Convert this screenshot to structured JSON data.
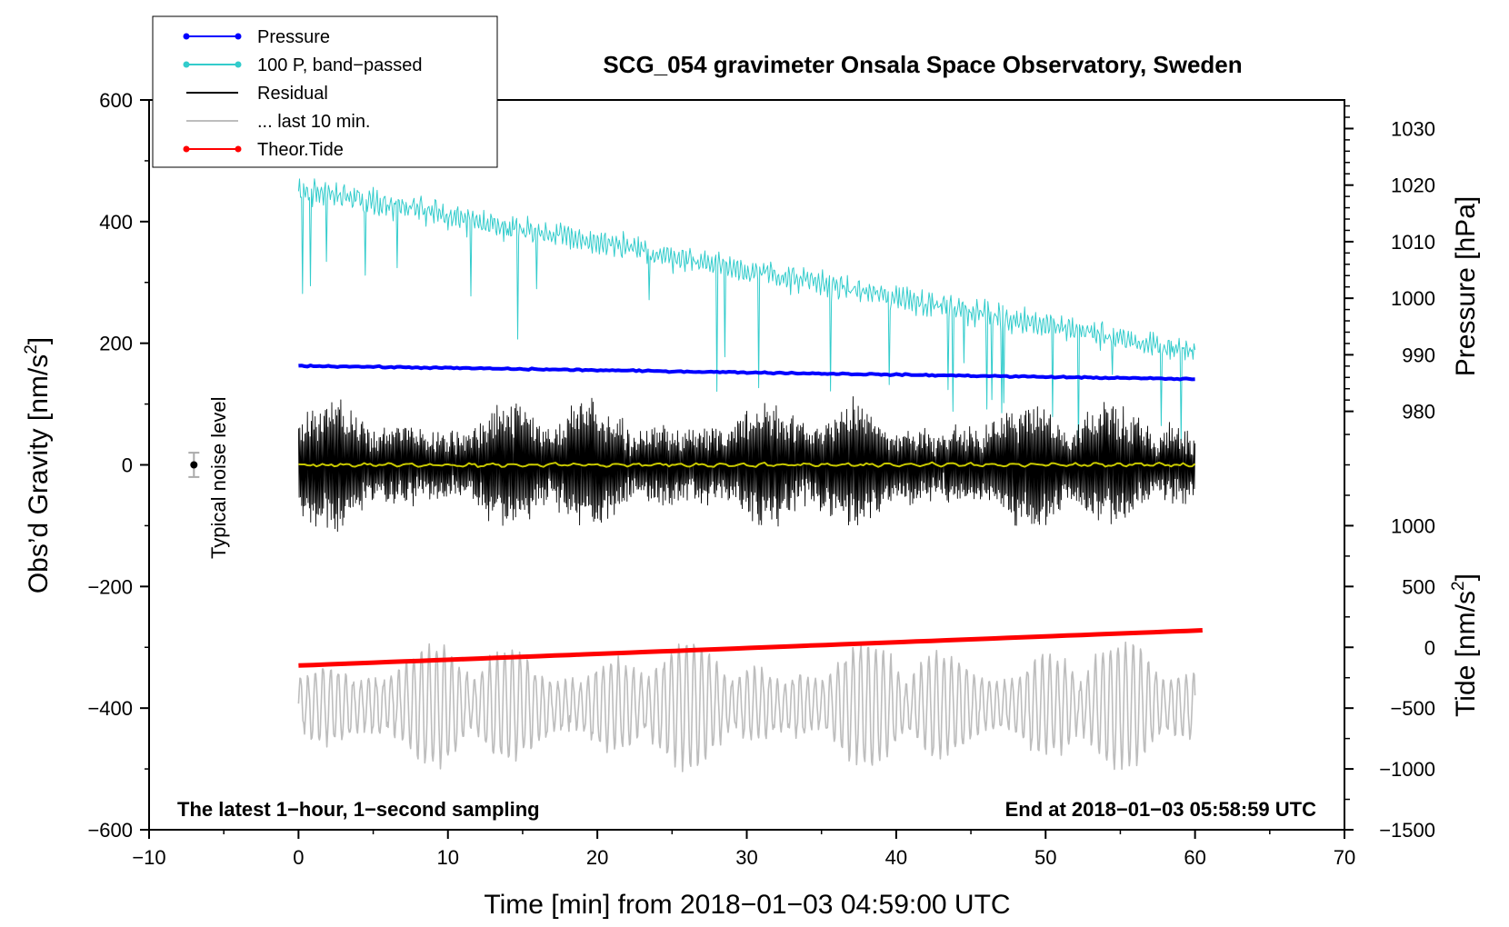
{
  "colors": {
    "pressure": "#0000ff",
    "band_passed": "#33cccc",
    "residual": "#000000",
    "last10": "#bdbdbd",
    "tide": "#ff0000",
    "zero_line": "#c8c800"
  },
  "legend": {
    "items": [
      {
        "label": "Pressure",
        "color": "#0000ff",
        "marker": true
      },
      {
        "label": "100 P, band−passed",
        "color": "#33cccc",
        "marker": true
      },
      {
        "label": "Residual",
        "color": "#000000",
        "marker": false
      },
      {
        "label": "... last 10 min.",
        "color": "#bdbdbd",
        "marker": false
      },
      {
        "label": "Theor.Tide",
        "color": "#ff0000",
        "marker": true
      }
    ]
  },
  "annotations": {
    "left_note": "The latest 1−hour, 1−second sampling",
    "right_note": "End at 2018−01−03 05:58:59 UTC",
    "noise_label": "Typical noise level"
  },
  "chart_data": {
    "type": "line",
    "title": "SCG_054 gravimeter Onsala Space Observatory, Sweden",
    "xlabel": "Time [min] from 2018−01−03 04:59:00 UTC",
    "ylabel": "Obs’d Gravity [nm/s",
    "ylabel_sup": "2",
    "ylabel_end": "]",
    "xlim": [
      -10,
      70
    ],
    "ylim": [
      -600,
      600
    ],
    "x_ticks": [
      -10,
      0,
      10,
      20,
      30,
      40,
      50,
      60,
      70
    ],
    "x_tick_labels": [
      "−10",
      "0",
      "10",
      "20",
      "30",
      "40",
      "50",
      "60",
      "70"
    ],
    "y_ticks": [
      -600,
      -400,
      -200,
      0,
      200,
      400,
      600
    ],
    "y_tick_labels": [
      "−600",
      "−400",
      "−200",
      "0",
      "200",
      "400",
      "600"
    ],
    "right_axes": {
      "pressure": {
        "label": "Pressure [hPa]",
        "ticks": [
          980,
          990,
          1000,
          1010,
          1020,
          1030
        ],
        "tick_labels": [
          "980",
          "990",
          "1000",
          "1010",
          "1020",
          "1030"
        ],
        "map_gravity": [
          [
            980,
            88
          ],
          [
            1030,
            553
          ]
        ]
      },
      "tide": {
        "label": "Tide [nm/s",
        "label_sup": "2",
        "label_end": "]",
        "ticks": [
          -1500,
          -1000,
          -500,
          0,
          500,
          1000
        ],
        "tick_labels": [
          "−1500",
          "−1000",
          "−500",
          "0",
          "500",
          "1000"
        ],
        "map_gravity": [
          [
            -1500,
            -600
          ],
          [
            1000,
            -100
          ]
        ]
      }
    },
    "noise_marker": {
      "x": -7,
      "y": 0,
      "error": 20
    },
    "series": [
      {
        "name": "Pressure",
        "x_range": [
          0,
          60
        ],
        "endpoints": [
          163,
          141
        ]
      },
      {
        "name": "100 P, band−passed",
        "x_range": [
          0,
          60
        ],
        "endpoints": [
          455,
          185
        ]
      },
      {
        "name": "Residual",
        "x_range": [
          0,
          60
        ],
        "center": 0,
        "amplitude_typical": 90,
        "amplitude_max": 210
      },
      {
        "name": "... last 10 min.",
        "x_range": [
          0,
          60
        ],
        "center": -395,
        "amplitude_typical": 70,
        "amplitude_max": 210
      },
      {
        "name": "Theor.Tide",
        "x_range": [
          0,
          60.5
        ],
        "endpoints": [
          -330,
          -272
        ]
      }
    ]
  }
}
